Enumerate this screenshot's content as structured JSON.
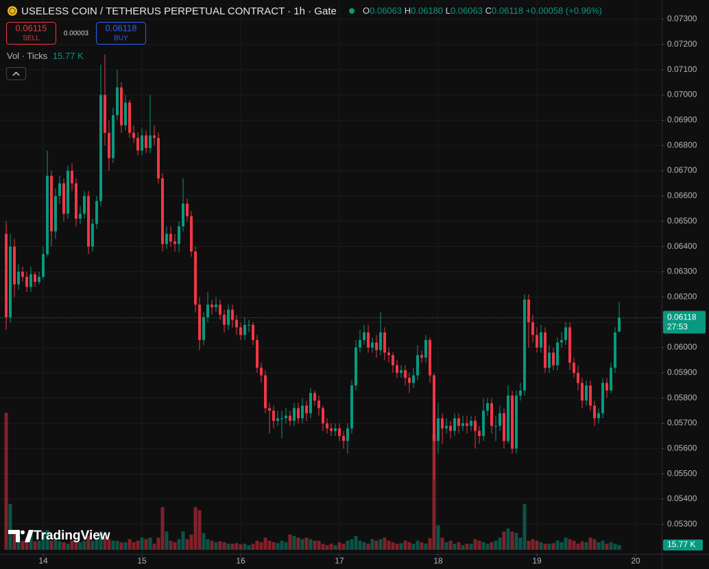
{
  "header": {
    "symbol_title": "USELESS COIN / TETHERUS PERPETUAL CONTRACT · 1h · Gate",
    "ohlc": [
      {
        "label": "O",
        "value": "0.06063"
      },
      {
        "label": "H",
        "value": "0.06180"
      },
      {
        "label": "L",
        "value": "0.06063"
      },
      {
        "label": "C",
        "value": "0.06118"
      }
    ],
    "change": "+0.00058 (+0.96%)"
  },
  "trade": {
    "sell_price": "0.06115",
    "sell_label": "SELL",
    "spread": "0.00003",
    "buy_price": "0.06118",
    "buy_label": "BUY"
  },
  "volume_legend": {
    "label": "Vol · Ticks",
    "value": "15.77 K"
  },
  "watermark": "TradingView",
  "chart_data": {
    "type": "candlestick",
    "up_color": "#089981",
    "down_color": "#f23645",
    "grid": true,
    "countdown": "27:53",
    "xlim": [
      -1.5,
      159.33
    ],
    "xticks": [
      {
        "value": 9,
        "label": "14"
      },
      {
        "value": 33,
        "label": "15"
      },
      {
        "value": 57,
        "label": "16"
      },
      {
        "value": 81,
        "label": "17"
      },
      {
        "value": 105,
        "label": "18"
      },
      {
        "value": 129,
        "label": "19"
      },
      {
        "value": 153,
        "label": "20"
      }
    ],
    "ylim": [
      0.05183,
      0.07376
    ],
    "yticks": [
      {
        "value": 0.053,
        "label": "0.05300"
      },
      {
        "value": 0.054,
        "label": "0.05400"
      },
      {
        "value": 0.055,
        "label": "0.05500"
      },
      {
        "value": 0.056,
        "label": "0.05600"
      },
      {
        "value": 0.057,
        "label": "0.05700"
      },
      {
        "value": 0.058,
        "label": "0.05800"
      },
      {
        "value": 0.059,
        "label": "0.05900"
      },
      {
        "value": 0.06,
        "label": "0.06000"
      },
      {
        "value": 0.061,
        "label": "0.06100"
      },
      {
        "value": 0.062,
        "label": "0.06200"
      },
      {
        "value": 0.063,
        "label": "0.06300"
      },
      {
        "value": 0.064,
        "label": "0.06400"
      },
      {
        "value": 0.065,
        "label": "0.06500"
      },
      {
        "value": 0.066,
        "label": "0.06600"
      },
      {
        "value": 0.067,
        "label": "0.06700"
      },
      {
        "value": 0.068,
        "label": "0.06800"
      },
      {
        "value": 0.069,
        "label": "0.06900"
      },
      {
        "value": 0.07,
        "label": "0.07000"
      },
      {
        "value": 0.071,
        "label": "0.07100"
      },
      {
        "value": 0.072,
        "label": "0.07200"
      },
      {
        "value": 0.073,
        "label": "0.07300"
      }
    ],
    "open": [
      0.0645,
      0.0612,
      0.064,
      0.0625,
      0.063,
      0.0628,
      0.0624,
      0.0629,
      0.0626,
      0.0628,
      0.0637,
      0.0668,
      0.0646,
      0.066,
      0.0665,
      0.0653,
      0.067,
      0.0665,
      0.0651,
      0.0653,
      0.066,
      0.064,
      0.0649,
      0.0658,
      0.07,
      0.0685,
      0.0675,
      0.0692,
      0.0703,
      0.0688,
      0.0697,
      0.0685,
      0.0683,
      0.0678,
      0.0684,
      0.0679,
      0.0684,
      0.0683,
      0.0667,
      0.0641,
      0.0645,
      0.0642,
      0.0641,
      0.0648,
      0.0657,
      0.0652,
      0.0638,
      0.0617,
      0.0603,
      0.0612,
      0.0617,
      0.0616,
      0.0617,
      0.0613,
      0.0609,
      0.0615,
      0.0611,
      0.0608,
      0.0605,
      0.0609,
      0.0609,
      0.0603,
      0.0592,
      0.0589,
      0.0576,
      0.0575,
      0.0571,
      0.0572,
      0.0572,
      0.0573,
      0.0571,
      0.0576,
      0.0572,
      0.0577,
      0.0574,
      0.0582,
      0.0579,
      0.0576,
      0.057,
      0.0568,
      0.0567,
      0.0568,
      0.0565,
      0.0563,
      0.0568,
      0.0585,
      0.06,
      0.0603,
      0.0606,
      0.06,
      0.0602,
      0.0599,
      0.0606,
      0.0598,
      0.0597,
      0.0593,
      0.059,
      0.0591,
      0.0588,
      0.0586,
      0.0589,
      0.0597,
      0.0596,
      0.0603,
      0.0589,
      0.0563,
      0.0572,
      0.0568,
      0.0569,
      0.0567,
      0.0572,
      0.0569,
      0.057,
      0.0569,
      0.0571,
      0.0567,
      0.0565,
      0.0575,
      0.0578,
      0.0569,
      0.0569,
      0.0574,
      0.0563,
      0.0581,
      0.056,
      0.0581,
      0.0583,
      0.0619,
      0.061,
      0.0605,
      0.06,
      0.0606,
      0.0592,
      0.0598,
      0.0593,
      0.0602,
      0.0603,
      0.0608,
      0.0594,
      0.059,
      0.0586,
      0.0579,
      0.0585,
      0.0577,
      0.0572,
      0.0574,
      0.0586,
      0.0583,
      0.0592,
      0.06063
    ],
    "high": [
      0.065,
      0.0645,
      0.0643,
      0.0633,
      0.0632,
      0.063,
      0.0632,
      0.063,
      0.063,
      0.064,
      0.0678,
      0.067,
      0.0663,
      0.0668,
      0.0667,
      0.0672,
      0.0673,
      0.0667,
      0.0656,
      0.0662,
      0.0662,
      0.0651,
      0.066,
      0.0712,
      0.0716,
      0.069,
      0.0695,
      0.071,
      0.0705,
      0.07,
      0.0698,
      0.0688,
      0.0685,
      0.0687,
      0.0686,
      0.07,
      0.0688,
      0.0685,
      0.0669,
      0.0648,
      0.0648,
      0.0645,
      0.065,
      0.0667,
      0.0659,
      0.0654,
      0.064,
      0.062,
      0.0614,
      0.0622,
      0.0619,
      0.062,
      0.0619,
      0.0615,
      0.0617,
      0.0617,
      0.0613,
      0.061,
      0.0612,
      0.0611,
      0.061,
      0.0605,
      0.0594,
      0.0591,
      0.0578,
      0.0577,
      0.0575,
      0.0575,
      0.0576,
      0.0575,
      0.0578,
      0.0578,
      0.058,
      0.0579,
      0.0584,
      0.0583,
      0.0581,
      0.0577,
      0.0572,
      0.057,
      0.057,
      0.057,
      0.0567,
      0.057,
      0.0587,
      0.0603,
      0.0607,
      0.0609,
      0.0609,
      0.0604,
      0.0605,
      0.0614,
      0.0608,
      0.06,
      0.0598,
      0.0595,
      0.0593,
      0.0593,
      0.059,
      0.0592,
      0.0601,
      0.0599,
      0.0605,
      0.0604,
      0.059,
      0.0578,
      0.0574,
      0.0572,
      0.0571,
      0.0574,
      0.0574,
      0.0573,
      0.0573,
      0.0573,
      0.0573,
      0.0569,
      0.058,
      0.058,
      0.058,
      0.0573,
      0.0577,
      0.0576,
      0.0585,
      0.0583,
      0.0583,
      0.0586,
      0.0621,
      0.0621,
      0.0613,
      0.0608,
      0.0609,
      0.0608,
      0.0601,
      0.06,
      0.0604,
      0.0606,
      0.061,
      0.061,
      0.0596,
      0.0593,
      0.0588,
      0.0587,
      0.0587,
      0.0579,
      0.0576,
      0.0588,
      0.0588,
      0.0594,
      0.0608,
      0.0618
    ],
    "low": [
      0.0607,
      0.061,
      0.062,
      0.0623,
      0.0626,
      0.0622,
      0.0622,
      0.0624,
      0.0625,
      0.0627,
      0.0636,
      0.064,
      0.0643,
      0.0657,
      0.065,
      0.0651,
      0.0662,
      0.0648,
      0.0649,
      0.0651,
      0.0637,
      0.0638,
      0.0647,
      0.0656,
      0.068,
      0.067,
      0.0673,
      0.069,
      0.0685,
      0.0686,
      0.0683,
      0.0681,
      0.0676,
      0.0676,
      0.0677,
      0.0677,
      0.068,
      0.0665,
      0.0638,
      0.0639,
      0.064,
      0.0638,
      0.0638,
      0.0646,
      0.065,
      0.0636,
      0.0614,
      0.0599,
      0.0601,
      0.061,
      0.0613,
      0.0614,
      0.0611,
      0.0606,
      0.0607,
      0.0608,
      0.0605,
      0.0603,
      0.0603,
      0.0606,
      0.0601,
      0.059,
      0.0586,
      0.0574,
      0.0566,
      0.0568,
      0.0569,
      0.0564,
      0.057,
      0.0569,
      0.0569,
      0.057,
      0.057,
      0.0571,
      0.0572,
      0.0577,
      0.0573,
      0.0567,
      0.0566,
      0.0565,
      0.0565,
      0.0563,
      0.056,
      0.0558,
      0.0566,
      0.0583,
      0.0598,
      0.0601,
      0.0598,
      0.0598,
      0.0596,
      0.0597,
      0.0595,
      0.0594,
      0.059,
      0.0588,
      0.0588,
      0.0585,
      0.0582,
      0.0584,
      0.0587,
      0.0594,
      0.0594,
      0.0586,
      0.0548,
      0.0558,
      0.0562,
      0.0566,
      0.0564,
      0.0565,
      0.0566,
      0.0567,
      0.0566,
      0.0567,
      0.056,
      0.0562,
      0.0563,
      0.0573,
      0.0566,
      0.0563,
      0.0567,
      0.056,
      0.0562,
      0.0558,
      0.0558,
      0.0579,
      0.0581,
      0.06,
      0.0602,
      0.0598,
      0.0598,
      0.059,
      0.059,
      0.0591,
      0.0591,
      0.06,
      0.0601,
      0.0591,
      0.0588,
      0.0583,
      0.0576,
      0.0577,
      0.0575,
      0.0569,
      0.057,
      0.0572,
      0.058,
      0.0582,
      0.059,
      0.06063
    ],
    "close": [
      0.0612,
      0.064,
      0.0625,
      0.063,
      0.0628,
      0.0624,
      0.0629,
      0.0626,
      0.0628,
      0.0637,
      0.0668,
      0.0646,
      0.066,
      0.0665,
      0.0653,
      0.067,
      0.0665,
      0.0651,
      0.0653,
      0.066,
      0.064,
      0.0649,
      0.0658,
      0.07,
      0.0685,
      0.0675,
      0.0692,
      0.0703,
      0.0688,
      0.0697,
      0.0685,
      0.0683,
      0.0678,
      0.0684,
      0.0679,
      0.0684,
      0.0683,
      0.0667,
      0.0641,
      0.0645,
      0.0642,
      0.0641,
      0.0648,
      0.0657,
      0.0652,
      0.0638,
      0.0617,
      0.0603,
      0.0612,
      0.0617,
      0.0616,
      0.0617,
      0.0613,
      0.0609,
      0.0615,
      0.0611,
      0.0608,
      0.0605,
      0.0609,
      0.0609,
      0.0603,
      0.0592,
      0.0589,
      0.0576,
      0.0575,
      0.0571,
      0.0572,
      0.0572,
      0.0573,
      0.0571,
      0.0576,
      0.0572,
      0.0577,
      0.0574,
      0.0582,
      0.0579,
      0.0576,
      0.057,
      0.0568,
      0.0567,
      0.0568,
      0.0565,
      0.0563,
      0.0568,
      0.0585,
      0.06,
      0.0603,
      0.0606,
      0.06,
      0.0602,
      0.0599,
      0.0606,
      0.0598,
      0.0597,
      0.0593,
      0.059,
      0.0591,
      0.0588,
      0.0586,
      0.0589,
      0.0597,
      0.0596,
      0.0603,
      0.0589,
      0.0563,
      0.0572,
      0.0568,
      0.0569,
      0.0567,
      0.0572,
      0.0569,
      0.057,
      0.0569,
      0.0571,
      0.0567,
      0.0565,
      0.0575,
      0.0578,
      0.0569,
      0.0569,
      0.0574,
      0.0563,
      0.0581,
      0.056,
      0.0581,
      0.0583,
      0.0619,
      0.061,
      0.0605,
      0.06,
      0.0606,
      0.0592,
      0.0598,
      0.0593,
      0.0602,
      0.0603,
      0.0608,
      0.0594,
      0.059,
      0.0586,
      0.0579,
      0.0585,
      0.0577,
      0.0572,
      0.0574,
      0.0586,
      0.0583,
      0.0592,
      0.0606,
      0.06118
    ],
    "volume": [
      450,
      150,
      60,
      45,
      30,
      40,
      55,
      28,
      30,
      60,
      65,
      30,
      35,
      28,
      25,
      20,
      30,
      28,
      25,
      30,
      45,
      30,
      40,
      60,
      40,
      35,
      30,
      30,
      25,
      25,
      35,
      25,
      30,
      40,
      35,
      40,
      20,
      40,
      140,
      60,
      30,
      25,
      35,
      60,
      35,
      50,
      140,
      130,
      55,
      35,
      30,
      25,
      28,
      25,
      20,
      20,
      22,
      18,
      20,
      15,
      20,
      30,
      25,
      40,
      30,
      25,
      22,
      30,
      25,
      50,
      45,
      40,
      35,
      40,
      35,
      30,
      30,
      20,
      15,
      20,
      15,
      25,
      20,
      30,
      35,
      45,
      30,
      25,
      20,
      35,
      30,
      35,
      40,
      30,
      25,
      20,
      22,
      30,
      25,
      20,
      30,
      25,
      20,
      38,
      380,
      80,
      40,
      25,
      30,
      20,
      25,
      15,
      20,
      20,
      35,
      30,
      25,
      20,
      25,
      30,
      40,
      60,
      70,
      60,
      55,
      40,
      150,
      30,
      35,
      30,
      25,
      20,
      20,
      22,
      30,
      25,
      40,
      35,
      30,
      20,
      28,
      25,
      40,
      35,
      25,
      30,
      20,
      25,
      20,
      15.77
    ]
  }
}
